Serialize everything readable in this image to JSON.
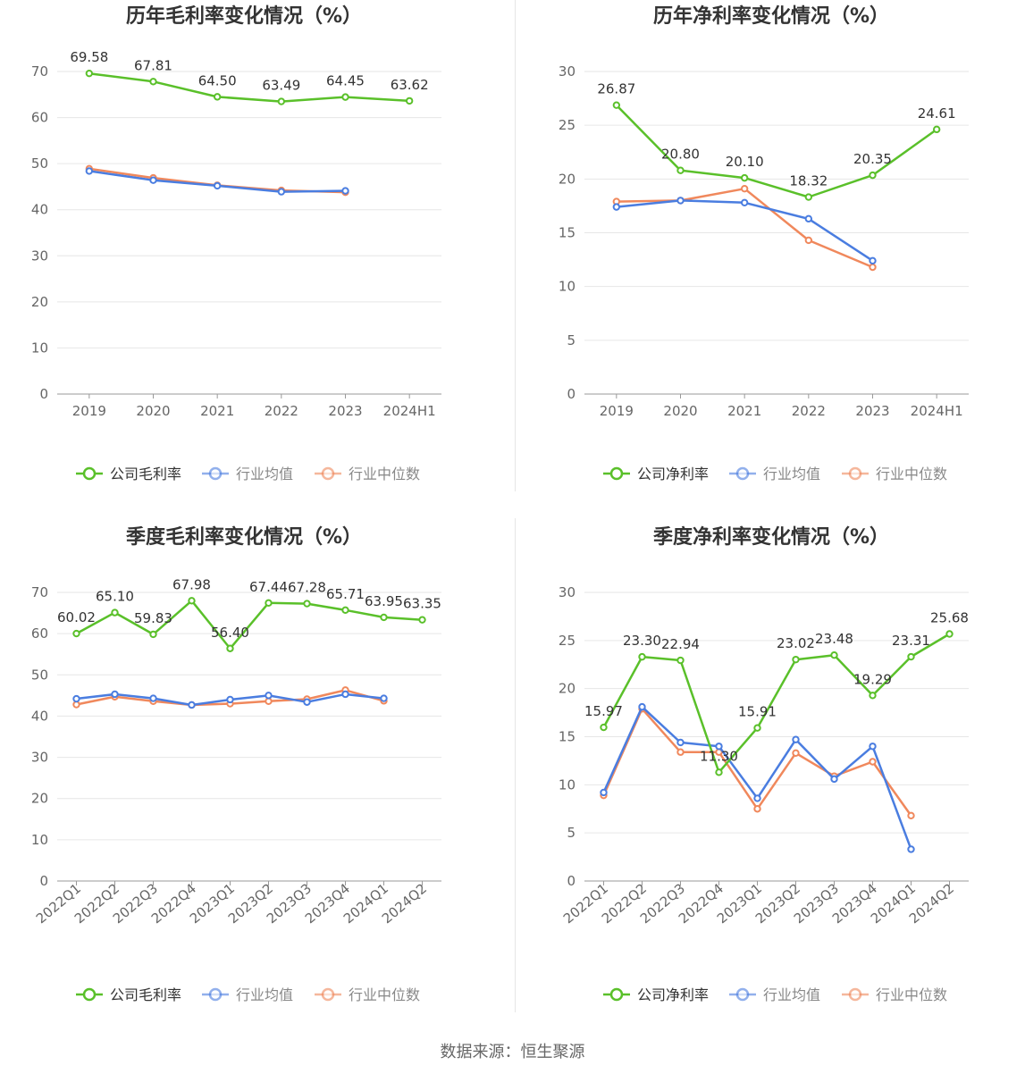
{
  "colors": {
    "company": "#5ac02a",
    "industry_avg": "#4a7de0",
    "industry_median": "#f0885c",
    "grid": "#e6e6e6",
    "axis_text": "#666666",
    "title_text": "#333333",
    "label_text": "#333333"
  },
  "source_text": "数据来源：恒生聚源",
  "chart_data": [
    {
      "id": "annual-gross",
      "type": "line",
      "title": "历年毛利率变化情况（%）",
      "categories": [
        "2019",
        "2020",
        "2021",
        "2022",
        "2023",
        "2024H1"
      ],
      "ylim": [
        0,
        70
      ],
      "yticks": [
        0,
        10,
        20,
        30,
        40,
        50,
        60,
        70
      ],
      "rotate_labels": false,
      "legend_position": "bottom",
      "series": [
        {
          "name": "公司毛利率",
          "key": "company",
          "values": [
            69.58,
            67.81,
            64.5,
            63.49,
            64.45,
            63.62
          ],
          "labels": [
            "69.58",
            "67.81",
            "64.50",
            "63.49",
            "64.45",
            "63.62"
          ]
        },
        {
          "name": "行业均值",
          "key": "industry_avg",
          "values": [
            48.4,
            46.4,
            45.2,
            43.9,
            44.1,
            null
          ],
          "labels": null
        },
        {
          "name": "行业中位数",
          "key": "industry_median",
          "values": [
            48.9,
            46.9,
            45.3,
            44.2,
            43.8,
            null
          ],
          "labels": null
        }
      ]
    },
    {
      "id": "annual-net",
      "type": "line",
      "title": "历年净利率变化情况（%）",
      "categories": [
        "2019",
        "2020",
        "2021",
        "2022",
        "2023",
        "2024H1"
      ],
      "ylim": [
        0,
        30
      ],
      "yticks": [
        0,
        5,
        10,
        15,
        20,
        25,
        30
      ],
      "rotate_labels": false,
      "legend_position": "bottom",
      "series": [
        {
          "name": "公司净利率",
          "key": "company",
          "values": [
            26.87,
            20.8,
            20.1,
            18.32,
            20.35,
            24.61
          ],
          "labels": [
            "26.87",
            "20.80",
            "20.10",
            "18.32",
            "20.35",
            "24.61"
          ]
        },
        {
          "name": "行业均值",
          "key": "industry_avg",
          "values": [
            17.4,
            18.0,
            17.8,
            16.3,
            12.4,
            null
          ],
          "labels": null
        },
        {
          "name": "行业中位数",
          "key": "industry_median",
          "values": [
            17.9,
            18.0,
            19.1,
            14.3,
            11.8,
            null
          ],
          "labels": null
        }
      ]
    },
    {
      "id": "quarterly-gross",
      "type": "line",
      "title": "季度毛利率变化情况（%）",
      "categories": [
        "2022Q1",
        "2022Q2",
        "2022Q3",
        "2022Q4",
        "2023Q1",
        "2023Q2",
        "2023Q3",
        "2023Q4",
        "2024Q1",
        "2024Q2"
      ],
      "ylim": [
        0,
        70
      ],
      "yticks": [
        0,
        10,
        20,
        30,
        40,
        50,
        60,
        70
      ],
      "rotate_labels": true,
      "legend_position": "bottom",
      "series": [
        {
          "name": "公司毛利率",
          "key": "company",
          "values": [
            60.02,
            65.1,
            59.83,
            67.98,
            56.4,
            67.44,
            67.28,
            65.71,
            63.95,
            63.35
          ],
          "labels": [
            "60.02",
            "65.10",
            "59.83",
            "67.98",
            "56.40",
            "67.44",
            "67.28",
            "65.71",
            "63.95",
            "63.35"
          ]
        },
        {
          "name": "行业均值",
          "key": "industry_avg",
          "values": [
            44.2,
            45.3,
            44.3,
            42.7,
            44.0,
            45.0,
            43.4,
            45.3,
            44.3,
            null
          ],
          "labels": null
        },
        {
          "name": "行业中位数",
          "key": "industry_median",
          "values": [
            42.8,
            44.7,
            43.6,
            42.7,
            43.0,
            43.6,
            44.1,
            46.3,
            43.7,
            null
          ],
          "labels": null
        }
      ]
    },
    {
      "id": "quarterly-net",
      "type": "line",
      "title": "季度净利率变化情况（%）",
      "categories": [
        "2022Q1",
        "2022Q2",
        "2022Q3",
        "2022Q4",
        "2023Q1",
        "2023Q2",
        "2023Q3",
        "2023Q4",
        "2024Q1",
        "2024Q2"
      ],
      "ylim": [
        0,
        30
      ],
      "yticks": [
        0,
        5,
        10,
        15,
        20,
        25,
        30
      ],
      "rotate_labels": true,
      "legend_position": "bottom",
      "series": [
        {
          "name": "公司净利率",
          "key": "company",
          "values": [
            15.97,
            23.3,
            22.94,
            11.3,
            15.91,
            23.02,
            23.48,
            19.29,
            23.31,
            25.68
          ],
          "labels": [
            "15.97",
            "23.30",
            "22.94",
            "11.30",
            "15.91",
            "23.02",
            "23.48",
            "19.29",
            "23.31",
            "25.68"
          ]
        },
        {
          "name": "行业均值",
          "key": "industry_avg",
          "values": [
            9.2,
            18.1,
            14.4,
            14.0,
            8.6,
            14.7,
            10.6,
            14.0,
            3.3,
            null
          ],
          "labels": null
        },
        {
          "name": "行业中位数",
          "key": "industry_median",
          "values": [
            8.9,
            17.9,
            13.4,
            13.4,
            7.5,
            13.3,
            10.9,
            12.4,
            6.8,
            null
          ],
          "labels": null
        }
      ]
    }
  ]
}
